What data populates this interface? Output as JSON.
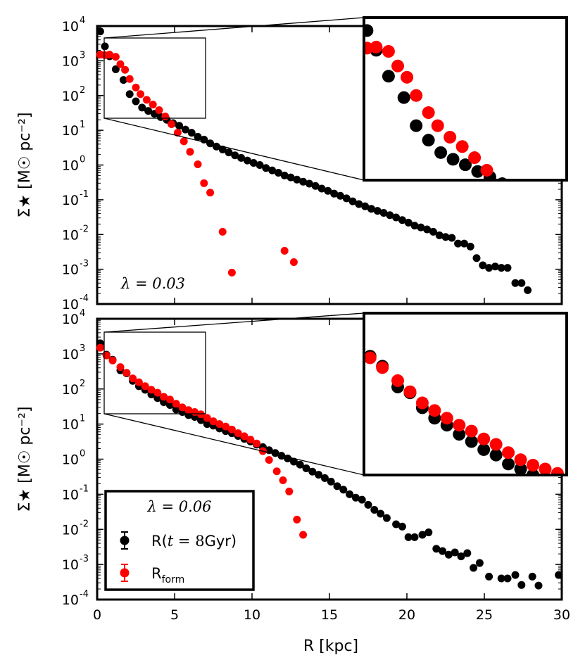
{
  "chart_data": {
    "type": "scatter",
    "xlabel": "R [kpc]",
    "ylabel": "Σ★ [M☉ pc⁻²]",
    "xlim": [
      0,
      30
    ],
    "ylim": [
      0.0001,
      10000
    ],
    "x_ticks": [
      "0",
      "5",
      "10",
      "15",
      "20",
      "25",
      "30"
    ],
    "y_ticks": [
      {
        "base": "10",
        "exp": "-4"
      },
      {
        "base": "10",
        "exp": "-3"
      },
      {
        "base": "10",
        "exp": "-2"
      },
      {
        "base": "10",
        "exp": "-1"
      },
      {
        "base": "10",
        "exp": "0"
      },
      {
        "base": "10",
        "exp": "1"
      },
      {
        "base": "10",
        "exp": "2"
      },
      {
        "base": "10",
        "exp": "3"
      },
      {
        "base": "10",
        "exp": "4"
      }
    ],
    "colors": {
      "black": "#000000",
      "red": "#ff0000"
    },
    "panels": [
      {
        "label": "λ = 0.03",
        "inset": {
          "xlim": [
            0.4,
            7.0
          ],
          "ylim": [
            18,
            4000
          ]
        },
        "series": [
          {
            "name": "R(t = 8Gyr)",
            "color": "#000000",
            "x": [
              0.2,
              0.5,
              0.8,
              1.2,
              1.7,
              2.1,
              2.5,
              2.9,
              3.3,
              3.7,
              4.1,
              4.5,
              4.9,
              5.3,
              5.7,
              6.1,
              6.5,
              6.9,
              7.3,
              7.7,
              8.1,
              8.5,
              8.9,
              9.3,
              9.7,
              10.1,
              10.5,
              10.9,
              11.3,
              11.7,
              12.1,
              12.5,
              12.9,
              13.3,
              13.7,
              14.1,
              14.5,
              14.9,
              15.3,
              15.7,
              16.1,
              16.5,
              16.9,
              17.3,
              17.7,
              18.1,
              18.5,
              18.9,
              19.3,
              19.7,
              20.1,
              20.5,
              20.9,
              21.3,
              21.7,
              22.1,
              22.5,
              22.9,
              23.3,
              23.7,
              24.1,
              24.5,
              24.9,
              25.3,
              25.7,
              26.1,
              26.5,
              27.0,
              27.4,
              27.8
            ],
            "y": [
              7000,
              2600,
              1350,
              570,
              280,
              110,
              68,
              45,
              36,
              30,
              24,
              20,
              16,
              13.5,
              10.5,
              8.5,
              6.5,
              5.4,
              4.2,
              3.4,
              2.8,
              2.3,
              1.9,
              1.6,
              1.35,
              1.15,
              1.0,
              0.82,
              0.7,
              0.6,
              0.5,
              0.44,
              0.38,
              0.33,
              0.29,
              0.25,
              0.21,
              0.18,
              0.15,
              0.13,
              0.11,
              0.09,
              0.075,
              0.065,
              0.055,
              0.048,
              0.042,
              0.036,
              0.031,
              0.026,
              0.022,
              0.018,
              0.016,
              0.014,
              0.012,
              0.0095,
              0.0085,
              0.008,
              0.0055,
              0.0055,
              0.0045,
              0.0021,
              0.0013,
              0.0011,
              0.0012,
              0.0011,
              0.0011,
              0.0004,
              0.0004,
              0.00025
            ]
          },
          {
            "name": "R_form",
            "color": "#ff0000",
            "x": [
              0.2,
              0.5,
              0.8,
              1.2,
              1.5,
              1.8,
              2.1,
              2.5,
              2.8,
              3.2,
              3.6,
              4.0,
              4.4,
              4.8,
              5.2,
              5.6,
              6.0,
              6.5,
              6.9,
              7.3,
              8.1,
              8.7,
              12.1,
              12.7
            ],
            "y": [
              1500,
              1450,
              1500,
              1300,
              800,
              550,
              300,
              170,
              110,
              75,
              55,
              38,
              25,
              15,
              8.5,
              4.8,
              2.4,
              1.05,
              0.3,
              0.16,
              0.012,
              0.0008,
              0.0034,
              0.0016
            ]
          }
        ]
      },
      {
        "label": "λ = 0.06",
        "inset": {
          "xlim": [
            0.4,
            7.0
          ],
          "ylim": [
            18,
            4000
          ]
        },
        "series": [
          {
            "name": "R(t = 8Gyr)",
            "color": "#000000",
            "x": [
              0.2,
              0.6,
              1.0,
              1.5,
              1.9,
              2.3,
              2.7,
              3.1,
              3.5,
              3.9,
              4.3,
              4.7,
              5.1,
              5.5,
              5.9,
              6.3,
              6.7,
              7.1,
              7.5,
              7.9,
              8.3,
              8.7,
              9.1,
              9.5,
              9.9,
              10.3,
              10.7,
              11.1,
              11.5,
              11.9,
              12.3,
              12.7,
              13.1,
              13.5,
              13.9,
              14.3,
              14.7,
              15.1,
              15.5,
              15.9,
              16.3,
              16.7,
              17.1,
              17.5,
              17.9,
              18.3,
              18.7,
              19.3,
              19.7,
              20.1,
              20.5,
              21.0,
              21.4,
              21.9,
              22.3,
              22.7,
              23.1,
              23.5,
              23.9,
              24.3,
              24.7,
              25.3,
              26.1,
              26.5,
              27.0,
              27.4,
              28.1,
              28.5,
              29.8
            ],
            "y": [
              2000,
              950,
              680,
              340,
              280,
              170,
              120,
              95,
              70,
              55,
              42,
              35,
              26,
              22,
              18,
              16,
              13,
              10,
              9,
              7.5,
              6.3,
              5.5,
              4.6,
              3.8,
              3.2,
              2.6,
              2.2,
              1.8,
              1.5,
              1.25,
              1.05,
              0.85,
              0.7,
              0.55,
              0.44,
              0.36,
              0.29,
              0.23,
              0.17,
              0.135,
              0.1,
              0.08,
              0.07,
              0.05,
              0.036,
              0.028,
              0.021,
              0.014,
              0.012,
              0.006,
              0.006,
              0.007,
              0.0082,
              0.0028,
              0.0024,
              0.0019,
              0.0022,
              0.0017,
              0.0021,
              0.0008,
              0.0011,
              0.00045,
              0.0004,
              0.0004,
              0.0005,
              0.00026,
              0.00045,
              0.00025,
              0.0005
            ]
          },
          {
            "name": "R_form",
            "color": "#ff0000",
            "x": [
              0.2,
              0.6,
              1.0,
              1.5,
              1.9,
              2.3,
              2.7,
              3.1,
              3.5,
              3.9,
              4.3,
              4.7,
              5.1,
              5.5,
              5.9,
              6.3,
              6.7,
              7.1,
              7.5,
              7.9,
              8.3,
              8.7,
              9.1,
              9.5,
              9.9,
              10.3,
              10.7,
              11.1,
              11.6,
              12.0,
              12.4,
              12.9,
              13.3
            ],
            "y": [
              1500,
              900,
              650,
              420,
              290,
              200,
              155,
              120,
              95,
              78,
              60,
              50,
              38,
              30,
              25,
              22,
              19,
              15,
              12,
              10,
              8.5,
              7.0,
              5.5,
              4.5,
              3.6,
              2.8,
              1.7,
              0.95,
              0.45,
              0.25,
              0.12,
              0.019,
              0.007
            ]
          }
        ]
      }
    ],
    "legend": {
      "title": "λ = 0.06",
      "entries": [
        {
          "pre": "R(",
          "math": "t",
          "mid": " = 8",
          "post": "Gyr)",
          "color": "#000000"
        },
        {
          "pre": "R",
          "sub": "form",
          "color": "#ff0000"
        }
      ]
    }
  }
}
